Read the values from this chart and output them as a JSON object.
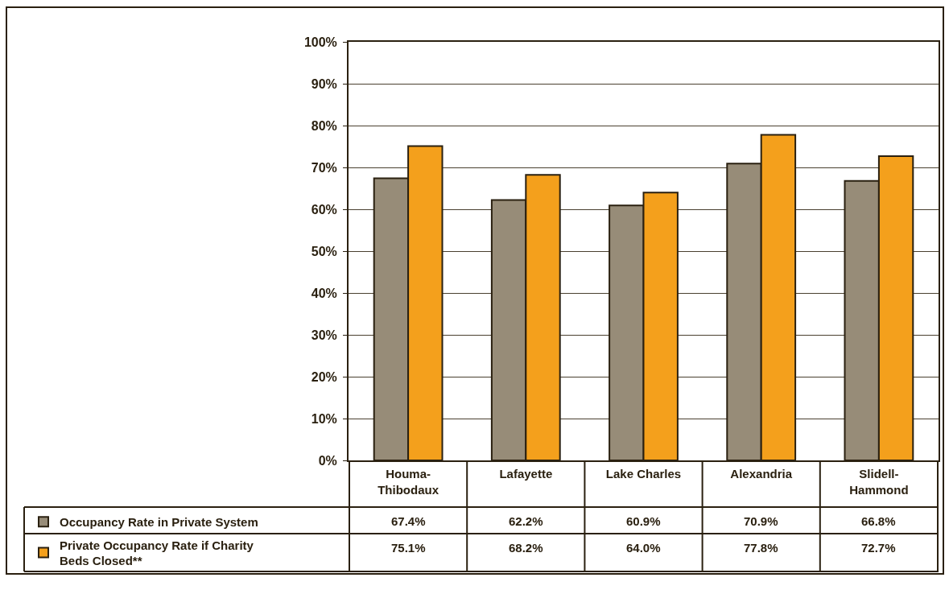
{
  "chart_data": {
    "type": "bar",
    "categories": [
      "Houma-Thibodaux",
      "Lafayette",
      "Lake Charles",
      "Alexandria",
      "Slidell-Hammond"
    ],
    "series": [
      {
        "name": "Occupancy Rate in Private System",
        "color": "#978c78",
        "values": [
          67.4,
          62.2,
          60.9,
          70.9,
          66.8
        ],
        "value_labels": [
          "67.4%",
          "62.2%",
          "60.9%",
          "70.9%",
          "66.8%"
        ]
      },
      {
        "name": "Private Occupancy Rate if Charity Beds Closed**",
        "color": "#f4a01c",
        "values": [
          75.1,
          68.2,
          64.0,
          77.8,
          72.7
        ],
        "value_labels": [
          "75.1%",
          "68.2%",
          "64.0%",
          "77.8%",
          "72.7%"
        ]
      }
    ],
    "ylim": [
      0,
      100
    ],
    "yticks": [
      {
        "value": 0,
        "label": "0%"
      },
      {
        "value": 10,
        "label": "10%"
      },
      {
        "value": 20,
        "label": "20%"
      },
      {
        "value": 30,
        "label": "30%"
      },
      {
        "value": 40,
        "label": "40%"
      },
      {
        "value": 50,
        "label": "50%"
      },
      {
        "value": 60,
        "label": "60%"
      },
      {
        "value": 70,
        "label": "70%"
      },
      {
        "value": 80,
        "label": "80%"
      },
      {
        "value": 90,
        "label": "90%"
      },
      {
        "value": 100,
        "label": "100%"
      }
    ],
    "grid": "y",
    "legend": "bottom left"
  }
}
